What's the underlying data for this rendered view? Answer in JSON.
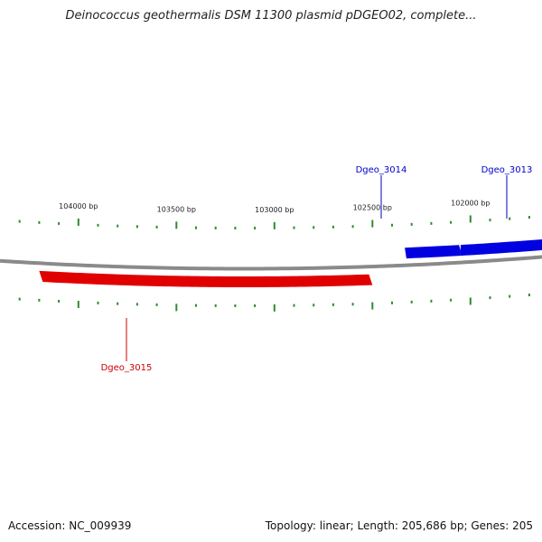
{
  "title": "Deinococcus geothermalis DSM 11300 plasmid pDGEO02, complete...",
  "footer": {
    "accession": "Accession: NC_009939",
    "summary": "Topology: linear; Length: 205,686 bp; Genes: 205"
  },
  "map": {
    "colors": {
      "backbone": "#8a8a8a",
      "forward_gene": "#0000e0",
      "reverse_gene": "#e00000",
      "ticks": "#2e8b2e",
      "forward_label": "#0000cc",
      "reverse_label": "#cc0000"
    },
    "scale_labels": [
      {
        "bp": 104000,
        "text": "104000 bp"
      },
      {
        "bp": 103500,
        "text": "103500 bp"
      },
      {
        "bp": 103000,
        "text": "103000 bp"
      },
      {
        "bp": 102500,
        "text": "102500 bp"
      },
      {
        "bp": 102000,
        "text": "102000 bp"
      }
    ],
    "genes": [
      {
        "name": "Dgeo_3013",
        "strand": "forward",
        "start_bp": 101350,
        "end_bp": 102050
      },
      {
        "name": "Dgeo_3014",
        "strand": "forward",
        "start_bp": 102050,
        "end_bp": 102335
      },
      {
        "name": "Dgeo_3015",
        "strand": "reverse",
        "start_bp": 102500,
        "end_bp": 104200
      }
    ]
  }
}
